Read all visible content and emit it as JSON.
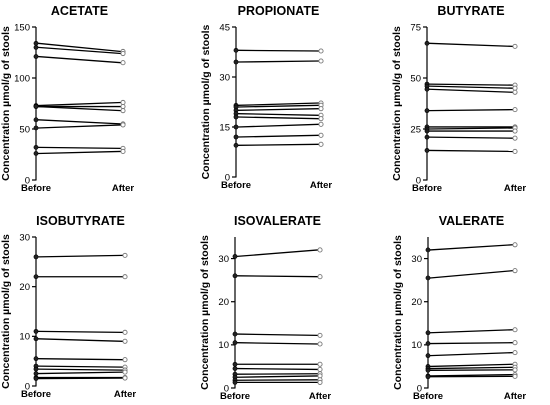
{
  "chart_data": [
    {
      "type": "line",
      "title": "ACETATE",
      "ylabel": "Concentration µmol/g of stools",
      "categories": [
        "Before",
        "After"
      ],
      "ylim": [
        0,
        150
      ],
      "yticks": [
        0,
        50,
        100,
        150
      ],
      "pairs": [
        [
          134,
          126
        ],
        [
          130,
          124
        ],
        [
          121,
          115
        ],
        [
          73,
          76
        ],
        [
          72,
          72
        ],
        [
          72,
          68
        ],
        [
          59,
          55
        ],
        [
          51,
          54
        ],
        [
          32,
          31
        ],
        [
          26,
          28
        ]
      ]
    },
    {
      "type": "line",
      "title": "PROPIONATE",
      "ylabel": "Concentration µmol/g of stools",
      "categories": [
        "Before",
        "After"
      ],
      "ylim": [
        0,
        45
      ],
      "yticks": [
        0,
        15,
        30,
        45
      ],
      "pairs": [
        [
          38,
          37.8
        ],
        [
          34.5,
          34.8
        ],
        [
          21.5,
          22.2
        ],
        [
          21,
          21.5
        ],
        [
          20,
          20.5
        ],
        [
          19,
          18.5
        ],
        [
          18,
          17.5
        ],
        [
          15,
          15.8
        ],
        [
          12,
          12.5
        ],
        [
          9.5,
          9.8
        ]
      ]
    },
    {
      "type": "line",
      "title": "BUTYRATE",
      "ylabel": "Concentration µmol/g of stools",
      "categories": [
        "Before",
        "After"
      ],
      "ylim": [
        0,
        75
      ],
      "yticks": [
        0,
        25,
        50,
        75
      ],
      "pairs": [
        [
          67,
          65.5
        ],
        [
          47,
          46.5
        ],
        [
          46,
          45
        ],
        [
          44.5,
          43
        ],
        [
          34,
          34.5
        ],
        [
          26,
          26
        ],
        [
          25,
          25.5
        ],
        [
          24,
          24
        ],
        [
          21,
          20.5
        ],
        [
          14.5,
          14
        ]
      ]
    },
    {
      "type": "line",
      "title": "ISOBUTYRATE",
      "ylabel": "Concentration µmol/g of stools",
      "categories": [
        "Before",
        "After"
      ],
      "ylim": [
        0,
        30
      ],
      "yticks": [
        0,
        10,
        20,
        30
      ],
      "pairs": [
        [
          26,
          26.3
        ],
        [
          22,
          22
        ],
        [
          11,
          10.8
        ],
        [
          9.5,
          9
        ],
        [
          5.5,
          5.3
        ],
        [
          4,
          3.8
        ],
        [
          3.4,
          3.2
        ],
        [
          2.5,
          2.8
        ],
        [
          1.7,
          1.7
        ],
        [
          1.5,
          1.6
        ]
      ]
    },
    {
      "type": "line",
      "title": "ISOVALERATE",
      "ylabel": "Concentration µmol/g of stools",
      "categories": [
        "Before",
        "After"
      ],
      "ylim": [
        0,
        35
      ],
      "yticks": [
        0,
        10,
        20,
        30
      ],
      "pairs": [
        [
          30.5,
          32
        ],
        [
          26,
          25.8
        ],
        [
          12.5,
          12.2
        ],
        [
          10.5,
          10.2
        ],
        [
          5.5,
          5.5
        ],
        [
          4.5,
          4.3
        ],
        [
          3.2,
          3.3
        ],
        [
          2.5,
          2.8
        ],
        [
          1.8,
          1.9
        ],
        [
          1.3,
          1.3
        ]
      ]
    },
    {
      "type": "line",
      "title": "VALERATE",
      "ylabel": "Concentration µmol/g of stools",
      "categories": [
        "Before",
        "After"
      ],
      "ylim": [
        0,
        35
      ],
      "yticks": [
        0,
        10,
        20,
        30
      ],
      "pairs": [
        [
          32,
          33.2
        ],
        [
          25.5,
          27.2
        ],
        [
          12.8,
          13.5
        ],
        [
          10.3,
          10.5
        ],
        [
          7.5,
          8.2
        ],
        [
          5,
          5.5
        ],
        [
          4.5,
          4.8
        ],
        [
          4.1,
          4.2
        ],
        [
          2.8,
          3.1
        ],
        [
          2.6,
          2.7
        ]
      ]
    }
  ]
}
